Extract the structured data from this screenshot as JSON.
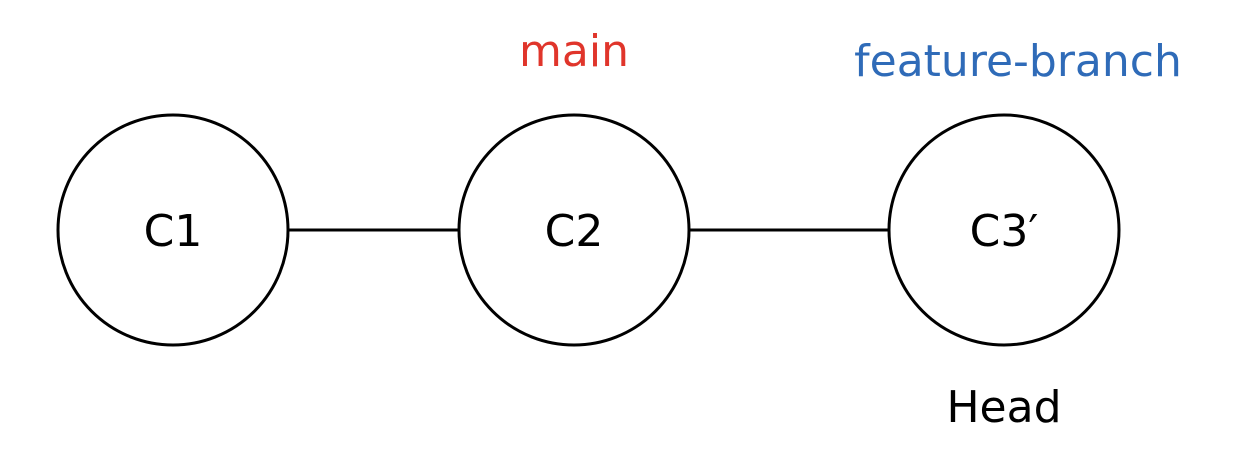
{
  "commits": [
    {
      "id": "c1",
      "label": "C1"
    },
    {
      "id": "c2",
      "label": "C2"
    },
    {
      "id": "c3",
      "label": "C3′"
    }
  ],
  "edges": [
    {
      "from": "c1",
      "to": "c2"
    },
    {
      "from": "c2",
      "to": "c3"
    }
  ],
  "refs": {
    "main": {
      "label": "main",
      "color": "#e0352b",
      "target": "c2"
    },
    "feature": {
      "label": "feature-branch",
      "color": "#2f6bb8",
      "target": "c3"
    },
    "head": {
      "label": "Head",
      "color": "#000000",
      "target": "c3"
    }
  }
}
